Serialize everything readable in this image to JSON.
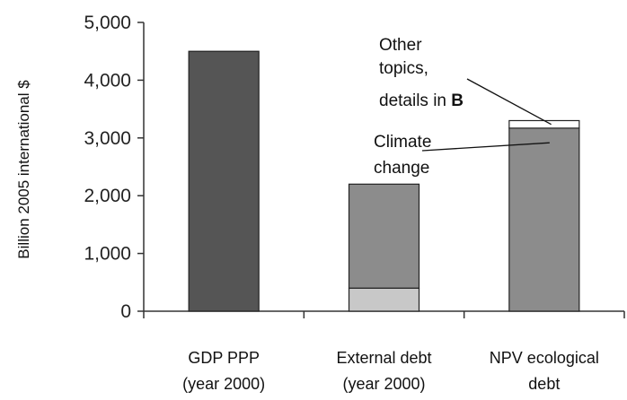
{
  "chart_data": {
    "type": "bar",
    "stacked": true,
    "title": "",
    "xlabel": "",
    "ylabel": "Billion 2005 international $",
    "ylim": [
      0,
      5000
    ],
    "yticks": [
      0,
      1000,
      2000,
      3000,
      4000,
      5000
    ],
    "ytick_labels": [
      "0",
      "1,000",
      "2,000",
      "3,000",
      "4,000",
      "5,000"
    ],
    "categories": [
      {
        "line1": "GDP PPP",
        "line2": "(year 2000)"
      },
      {
        "line1": "External debt",
        "line2": "(year 2000)"
      },
      {
        "line1": "NPV ecological",
        "line2": "debt"
      }
    ],
    "bars": [
      {
        "segments": [
          {
            "value": 4500,
            "color": "#555555"
          }
        ]
      },
      {
        "segments": [
          {
            "value": 400,
            "color": "#c8c8c8"
          },
          {
            "value": 1800,
            "color": "#8c8c8c"
          }
        ]
      },
      {
        "segments": [
          {
            "value": 3170,
            "color": "#8c8c8c"
          },
          {
            "value": 130,
            "color": "#ffffff"
          }
        ]
      }
    ],
    "annotations": {
      "other": [
        "Other",
        "topics,",
        "details in "
      ],
      "other_bold": "B",
      "climate": [
        "Climate",
        "change"
      ]
    },
    "grid": false,
    "legend": "none"
  }
}
